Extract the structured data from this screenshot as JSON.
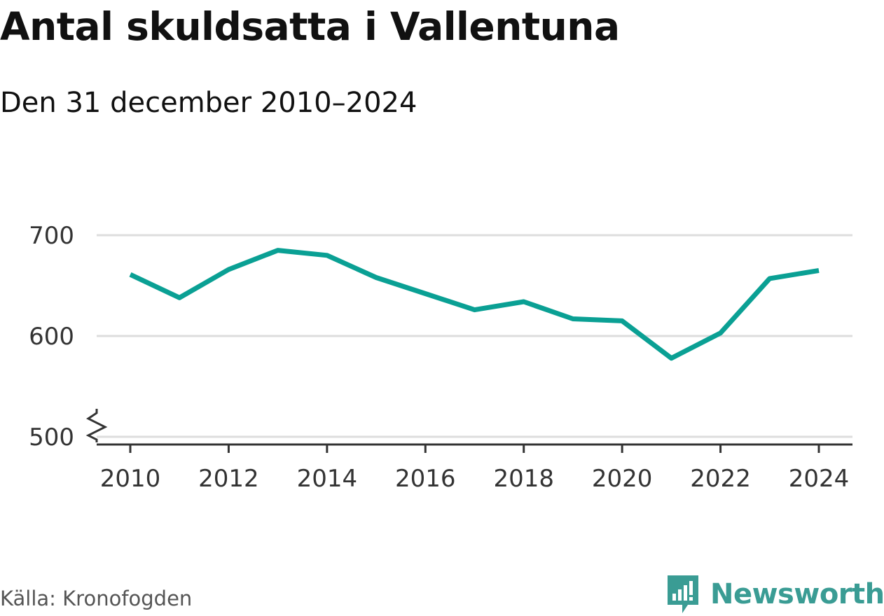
{
  "header": {
    "title": "Antal skuldsatta i Vallentuna",
    "subtitle": "Den 31 december 2010–2024"
  },
  "footer": {
    "source": "Källa: Kronofogden",
    "brand": "Newsworthy"
  },
  "colors": {
    "line": "#0aa094",
    "grid": "#dddddd",
    "axis": "#333333",
    "brand": "#3a9c94"
  },
  "chart_data": {
    "type": "line",
    "title": "Antal skuldsatta i Vallentuna",
    "subtitle": "Den 31 december 2010–2024",
    "x": [
      2010,
      2011,
      2012,
      2013,
      2014,
      2015,
      2016,
      2017,
      2018,
      2019,
      2020,
      2021,
      2022,
      2023,
      2024
    ],
    "y": [
      661,
      638,
      666,
      685,
      680,
      658,
      642,
      626,
      634,
      617,
      615,
      578,
      603,
      657,
      665
    ],
    "xlim": [
      2010,
      2024
    ],
    "ylim": [
      500,
      700
    ],
    "y_axis_break": true,
    "x_ticks": [
      "2010",
      "2012",
      "2014",
      "2016",
      "2018",
      "2020",
      "2022",
      "2024"
    ],
    "y_ticks": [
      "500",
      "600",
      "700"
    ],
    "grid": true,
    "xlabel": "",
    "ylabel": ""
  }
}
